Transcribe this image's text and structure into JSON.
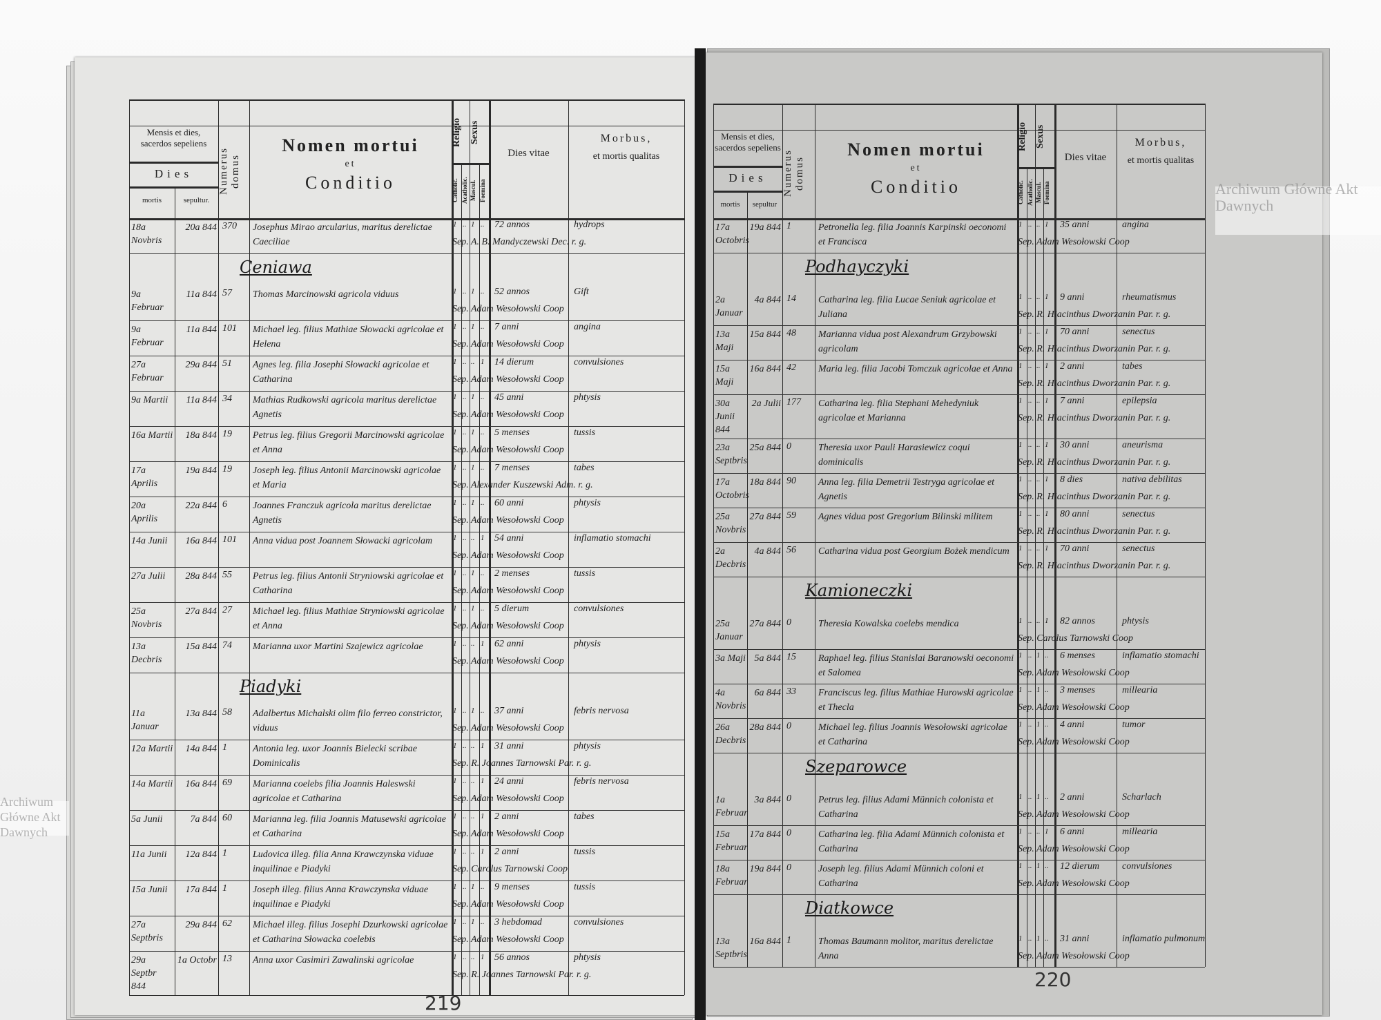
{
  "header": {
    "mensis": "Mensis et dies, sacerdos sepeliens",
    "dies": "Dies",
    "mortis": "mortis",
    "sepultur_left": "sepultur.",
    "sepultur_right": "sepultur",
    "numerus": "Numerus domus",
    "nomen": "Nomen mortui",
    "et": "et",
    "conditio": "Conditio",
    "religio": "Religio",
    "sexus": "Sexus",
    "catholic": "Catholic.",
    "acatholic": "Acatholic.",
    "mascul": "Mascul.",
    "foemina": "Foemina",
    "dies_vitae": "Dies vitae",
    "morbus": "Morbus,",
    "qualitas": "et mortis qualitas"
  },
  "watermark": "Archiwum Główne Akt Dawnych",
  "colors": {
    "left_page": "#e6e6e4",
    "right_page": "#c9c9c7",
    "ink": "#1e1e1e"
  },
  "pages": [
    {
      "page_number": "219",
      "rows": [
        {
          "m": "18a Novbris",
          "s": "20a 844",
          "d": "370",
          "n": "Josephus Mirao arcularius, maritus derelictae Caeciliae",
          "r": [
            "1",
            "..",
            "1",
            ".."
          ],
          "v": "72 annos",
          "p": "Sep. A. B. Mandyczewski Dec. r. g.",
          "b": "hydrops"
        },
        {
          "section": "Ceniawa"
        },
        {
          "m": "9a Februar",
          "s": "11a 844",
          "d": "57",
          "n": "Thomas Marcinowski agricola viduus",
          "r": [
            "1",
            "..",
            "1",
            ".."
          ],
          "v": "52 annos",
          "p": "Sep. Adam Wesołowski Coop",
          "b": "Gift"
        },
        {
          "m": "9a Februar",
          "s": "11a 844",
          "d": "101",
          "n": "Michael leg. filius Mathiae Słowacki agricolae et Helena",
          "r": [
            "1",
            "..",
            "1",
            ".."
          ],
          "v": "7 anni",
          "p": "Sep. Adam Wesołowski Coop",
          "b": "angina"
        },
        {
          "m": "27a Februar",
          "s": "29a 844",
          "d": "51",
          "n": "Agnes leg. filia Josephi Słowacki agricolae et Catharina",
          "r": [
            "1",
            "..",
            "..",
            "1"
          ],
          "v": "14 dierum",
          "p": "Sep. Adam Wesołowski Coop",
          "b": "convulsiones"
        },
        {
          "m": "9a Martii",
          "s": "11a 844",
          "d": "34",
          "n": "Mathias Rudkowski agricola maritus derelictae Agnetis",
          "r": [
            "1",
            "..",
            "1",
            ".."
          ],
          "v": "45 anni",
          "p": "Sep. Adam Wesołowski Coop",
          "b": "phtysis"
        },
        {
          "m": "16a Martii",
          "s": "18a 844",
          "d": "19",
          "n": "Petrus leg. filius Gregorii Marcinowski agricolae et Anna",
          "r": [
            "1",
            "..",
            "1",
            ".."
          ],
          "v": "5 menses",
          "p": "Sep. Adam Wesołowski Coop",
          "b": "tussis"
        },
        {
          "m": "17a Aprilis",
          "s": "19a 844",
          "d": "19",
          "n": "Joseph leg. filius Antonii Marcinowski agricolae et Maria",
          "r": [
            "1",
            "..",
            "1",
            ".."
          ],
          "v": "7 menses",
          "p": "Sep. Alexander Kuszewski Adm. r. g.",
          "b": "tabes"
        },
        {
          "m": "20a Aprilis",
          "s": "22a 844",
          "d": "6",
          "n": "Joannes Franczuk agricola maritus derelictae Agnetis",
          "r": [
            "1",
            "..",
            "1",
            ".."
          ],
          "v": "60 anni",
          "p": "Sep. Adam Wesołowski Coop",
          "b": "phtysis"
        },
        {
          "m": "14a Junii",
          "s": "16a 844",
          "d": "101",
          "n": "Anna vidua post Joannem Słowacki agricolam",
          "r": [
            "1",
            "..",
            "..",
            "1"
          ],
          "v": "54 anni",
          "p": "Sep. Adam Wesołowski Coop",
          "b": "inflamatio stomachi"
        },
        {
          "m": "27a Julii",
          "s": "28a 844",
          "d": "55",
          "n": "Petrus leg. filius Antonii Stryniowski agricolae et Catharina",
          "r": [
            "1",
            "..",
            "1",
            ".."
          ],
          "v": "2 menses",
          "p": "Sep. Adam Wesołowski Coop",
          "b": "tussis"
        },
        {
          "m": "25a Novbris",
          "s": "27a 844",
          "d": "27",
          "n": "Michael leg. filius Mathiae Stryniowski agricolae et Anna",
          "r": [
            "1",
            "..",
            "1",
            ".."
          ],
          "v": "5 dierum",
          "p": "Sep. Adam Wesołowski Coop",
          "b": "convulsiones"
        },
        {
          "m": "13a Decbris",
          "s": "15a 844",
          "d": "74",
          "n": "Marianna uxor Martini Szajewicz agricolae",
          "r": [
            "1",
            "..",
            "..",
            "1"
          ],
          "v": "62 anni",
          "p": "Sep. Adam Wesołowski Coop",
          "b": "phtysis"
        },
        {
          "section": "Piadyki"
        },
        {
          "m": "11a Januar",
          "s": "13a 844",
          "d": "58",
          "n": "Adalbertus Michalski olim filo ferreo constrictor, viduus",
          "r": [
            "1",
            "..",
            "1",
            ".."
          ],
          "v": "37 anni",
          "p": "Sep. Adam Wesołowski Coop",
          "b": "febris nervosa"
        },
        {
          "m": "12a Martii",
          "s": "14a 844",
          "d": "1",
          "n": "Antonia leg. uxor Joannis Bielecki scribae Dominicalis",
          "r": [
            "1",
            "..",
            "..",
            "1"
          ],
          "v": "31 anni",
          "p": "Sep. R. Joannes Tarnowski Par. r. g.",
          "b": "phtysis"
        },
        {
          "m": "14a Martii",
          "s": "16a 844",
          "d": "69",
          "n": "Marianna coelebs filia Joannis Haleswski agricolae et Catharina",
          "r": [
            "1",
            "..",
            "..",
            "1"
          ],
          "v": "24 anni",
          "p": "Sep. Adam Wesołowski Coop",
          "b": "febris nervosa"
        },
        {
          "m": "5a Junii",
          "s": "7a 844",
          "d": "60",
          "n": "Marianna leg. filia Joannis Matusewski agricolae et Catharina",
          "r": [
            "1",
            "..",
            "..",
            "1"
          ],
          "v": "2 anni",
          "p": "Sep. Adam Wesołowski Coop",
          "b": "tabes"
        },
        {
          "m": "11a Junii",
          "s": "12a 844",
          "d": "1",
          "n": "Ludovica illeg. filia Anna Krawczynska viduae inquilinae e Piadyki",
          "r": [
            "1",
            "..",
            "..",
            "1"
          ],
          "v": "2 anni",
          "p": "Sep. Carolus Tarnowski Coop",
          "b": "tussis"
        },
        {
          "m": "15a Junii",
          "s": "17a 844",
          "d": "1",
          "n": "Joseph illeg. filius Anna Krawczynska viduae inquilinae e Piadyki",
          "r": [
            "1",
            "..",
            "1",
            ".."
          ],
          "v": "9 menses",
          "p": "Sep. Adam Wesołowski Coop",
          "b": "tussis"
        },
        {
          "m": "27a Septbris",
          "s": "29a 844",
          "d": "62",
          "n": "Michael illeg. filius Josephi Dzurkowski agricolae et Catharina Słowacka coelebis",
          "r": [
            "1",
            "..",
            "1",
            ".."
          ],
          "v": "3 hebdomad",
          "p": "Sep. Adam Wesołowski Coop",
          "b": "convulsiones"
        },
        {
          "m": "29a Septbr 844",
          "s": "1a Octobr",
          "d": "13",
          "n": "Anna uxor Casimiri Zawalinski agricolae",
          "r": [
            "1",
            "..",
            "..",
            "1"
          ],
          "v": "56 annos",
          "p": "Sep. R. Joannes Tarnowski Par. r. g.",
          "b": "phtysis"
        }
      ]
    },
    {
      "page_number": "220",
      "rows": [
        {
          "m": "17a Octobris",
          "s": "19a 844",
          "d": "1",
          "n": "Petronella leg. filia Joannis Karpinski oeconomi et Francisca",
          "r": [
            "1",
            "..",
            "..",
            "1"
          ],
          "v": "35 anni",
          "p": "Sep. Adam Wesołowski Coop",
          "b": "angina"
        },
        {
          "section": "Podhayczyki"
        },
        {
          "m": "2a Januar",
          "s": "4a 844",
          "d": "14",
          "n": "Catharina leg. filia Lucae Seniuk agricolae et Juliana",
          "r": [
            "1",
            "..",
            "..",
            "1"
          ],
          "v": "9 anni",
          "p": "Sep. R. Hiacinthus Dworzanin Par. r. g.",
          "b": "rheumatismus"
        },
        {
          "m": "13a Maji",
          "s": "15a 844",
          "d": "48",
          "n": "Marianna vidua post Alexandrum Grzybowski agricolam",
          "r": [
            "1",
            "..",
            "..",
            "1"
          ],
          "v": "70 anni",
          "p": "Sep. R. Hiacinthus Dworzanin Par. r. g.",
          "b": "senectus"
        },
        {
          "m": "15a Maji",
          "s": "16a 844",
          "d": "42",
          "n": "Maria leg. filia Jacobi Tomczuk agricolae et Anna",
          "r": [
            "1",
            "..",
            "..",
            "1"
          ],
          "v": "2 anni",
          "p": "Sep. R. Hiacinthus Dworzanin Par. r. g.",
          "b": "tabes"
        },
        {
          "m": "30a Junii 844",
          "s": "2a Julii",
          "d": "177",
          "n": "Catharina leg. filia Stephani Mehedyniuk agricolae et Marianna",
          "r": [
            "1",
            "..",
            "..",
            "1"
          ],
          "v": "7 anni",
          "p": "Sep. R. Hiacinthus Dworzanin Par. r. g.",
          "b": "epilepsia"
        },
        {
          "m": "23a Septbris",
          "s": "25a 844",
          "d": "0",
          "n": "Theresia uxor Pauli Harasiewicz coqui dominicalis",
          "r": [
            "1",
            "..",
            "..",
            "1"
          ],
          "v": "30 anni",
          "p": "Sep. R. Hiacinthus Dworzanin Par. r. g.",
          "b": "aneurisma"
        },
        {
          "m": "17a Octobris",
          "s": "18a 844",
          "d": "90",
          "n": "Anna leg. filia Demetrii Testryga agricolae et Agnetis",
          "r": [
            "1",
            "..",
            "..",
            "1"
          ],
          "v": "8 dies",
          "p": "Sep. R. Hiacinthus Dworzanin Par. r. g.",
          "b": "nativa debilitas"
        },
        {
          "m": "25a Novbris",
          "s": "27a 844",
          "d": "59",
          "n": "Agnes vidua post Gregorium Bilinski militem",
          "r": [
            "1",
            "..",
            "..",
            "1"
          ],
          "v": "80 anni",
          "p": "Sep. R. Hiacinthus Dworzanin Par. r. g.",
          "b": "senectus"
        },
        {
          "m": "2a Decbris",
          "s": "4a 844",
          "d": "56",
          "n": "Catharina vidua post Georgium Bożek mendicum",
          "r": [
            "1",
            "..",
            "..",
            "1"
          ],
          "v": "70 anni",
          "p": "Sep. R. Hiacinthus Dworzanin Par. r. g.",
          "b": "senectus"
        },
        {
          "section": "Kamioneczki"
        },
        {
          "m": "25a Januar",
          "s": "27a 844",
          "d": "0",
          "n": "Theresia Kowalska coelebs mendica",
          "r": [
            "1",
            "..",
            "..",
            "1"
          ],
          "v": "82 annos",
          "p": "Sep. Carolus Tarnowski Coop",
          "b": "phtysis"
        },
        {
          "m": "3a Maji",
          "s": "5a 844",
          "d": "15",
          "n": "Raphael leg. filius Stanislai Baranowski oeconomi et Salomea",
          "r": [
            "1",
            "..",
            "1",
            ".."
          ],
          "v": "6 menses",
          "p": "Sep. Adam Wesołowski Coop",
          "b": "inflamatio stomachi"
        },
        {
          "m": "4a Novbris",
          "s": "6a 844",
          "d": "33",
          "n": "Franciscus leg. filius Mathiae Hurowski agricolae et Thecla",
          "r": [
            "1",
            "..",
            "1",
            ".."
          ],
          "v": "3 menses",
          "p": "Sep. Adam Wesołowski Coop",
          "b": "millearia"
        },
        {
          "m": "26a Decbris",
          "s": "28a 844",
          "d": "0",
          "n": "Michael leg. filius Joannis Wesołowski agricolae et Catharina",
          "r": [
            "1",
            "..",
            "1",
            ".."
          ],
          "v": "4 anni",
          "p": "Sep. Adam Wesołowski Coop",
          "b": "tumor"
        },
        {
          "section": "Szeparowce"
        },
        {
          "m": "1a Februar",
          "s": "3a 844",
          "d": "0",
          "n": "Petrus leg. filius Adami Münnich colonista et Catharina",
          "r": [
            "1",
            "..",
            "1",
            ".."
          ],
          "v": "2 anni",
          "p": "Sep. Adam Wesołowski Coop",
          "b": "Scharlach"
        },
        {
          "m": "15a Februar",
          "s": "17a 844",
          "d": "0",
          "n": "Catharina leg. filia Adami Münnich colonista et Catharina",
          "r": [
            "1",
            "..",
            "..",
            "1"
          ],
          "v": "6 anni",
          "p": "Sep. Adam Wesołowski Coop",
          "b": "millearia"
        },
        {
          "m": "18a Februar",
          "s": "19a 844",
          "d": "0",
          "n": "Joseph leg. filius Adami Münnich coloni et Catharina",
          "r": [
            "1",
            "..",
            "1",
            ".."
          ],
          "v": "12 dierum",
          "p": "Sep. Adam Wesołowski Coop",
          "b": "convulsiones"
        },
        {
          "section": "Diatkowce"
        },
        {
          "m": "13a Septbris",
          "s": "16a 844",
          "d": "1",
          "n": "Thomas Baumann molitor, maritus derelictae Anna",
          "r": [
            "1",
            "..",
            "1",
            ".."
          ],
          "v": "31 anni",
          "p": "Sep. Adam Wesołowski Coop",
          "b": "inflamatio pulmonum"
        }
      ]
    }
  ]
}
